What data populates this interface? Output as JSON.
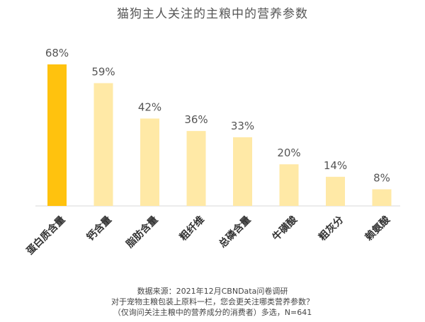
{
  "title": "猫狗主人关注的主粮中的营养参数",
  "chart_data": {
    "type": "bar",
    "categories": [
      "蛋白质含量",
      "钙含量",
      "脂肪含量",
      "粗纤维",
      "总磷含量",
      "牛磺酸",
      "粗灰分",
      "赖氨酸"
    ],
    "values": [
      68,
      59,
      42,
      36,
      33,
      20,
      14,
      8
    ],
    "value_labels": [
      "68%",
      "59%",
      "42%",
      "36%",
      "33%",
      "20%",
      "14%",
      "8%"
    ],
    "unit": "%",
    "ylim": [
      0,
      70
    ],
    "grid": false,
    "highlight_index": 0,
    "colors": {
      "highlight": "#FFC20E",
      "bar": "#FFE9A6",
      "axis": "#D9D9D9",
      "label": "#555555"
    }
  },
  "footer": {
    "line1": "数据来源：2021年12月CBNData问卷调研",
    "line2": "对于宠物主粮包装上原料一栏，您会更关注哪类营养参数？",
    "line3": "（仅询问关注主粮中的营养成分的消费者）多选，N=641"
  }
}
